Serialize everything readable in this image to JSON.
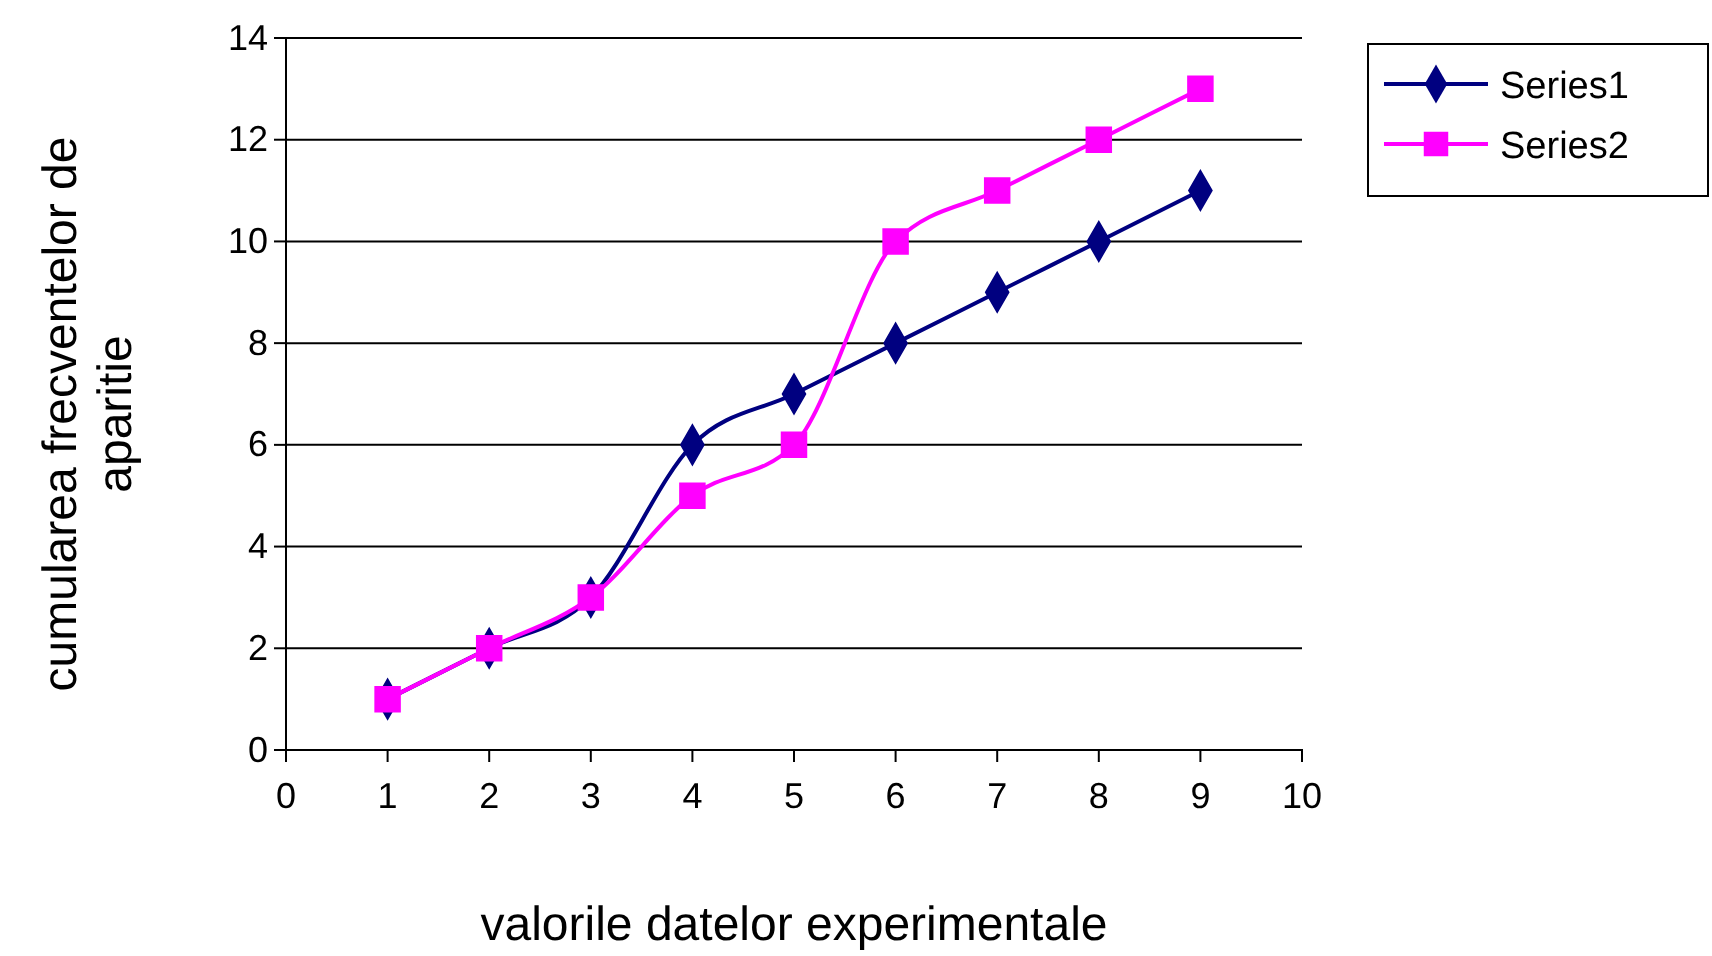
{
  "chart_data": {
    "type": "line",
    "xlabel": "valorile datelor experimentale",
    "ylabel": "cumularea frecventelor de aparitie",
    "x": [
      1,
      2,
      3,
      4,
      5,
      6,
      7,
      8,
      9
    ],
    "series": [
      {
        "name": "Series1",
        "color": "#000080",
        "marker": "diamond",
        "values": [
          1,
          2,
          3,
          6,
          7,
          8,
          9,
          10,
          11
        ]
      },
      {
        "name": "Series2",
        "color": "#ff00ff",
        "marker": "square",
        "values": [
          1,
          2,
          3,
          5,
          6,
          10,
          11,
          12,
          13
        ]
      }
    ],
    "xlim": [
      0,
      10
    ],
    "xticks": [
      0,
      1,
      2,
      3,
      4,
      5,
      6,
      7,
      8,
      9,
      10
    ],
    "ylim": [
      0,
      14
    ],
    "yticks": [
      0,
      2,
      4,
      6,
      8,
      10,
      12,
      14
    ],
    "grid": "y",
    "legend": "top right"
  }
}
